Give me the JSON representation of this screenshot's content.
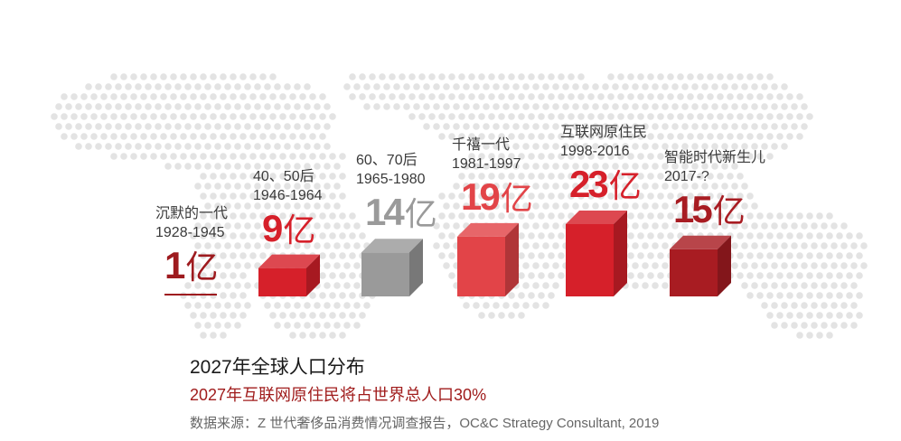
{
  "chart_data": {
    "type": "bar",
    "title": "2027年全球人口分布",
    "subtitle": "2027年互联网原住民将占世界总人口30%",
    "source": "数据来源：Z 世代奢侈品消费情况调查报告，OC&C Strategy Consultant, 2019",
    "unit": "亿",
    "categories": [
      {
        "name": "沉默的一代",
        "years": "1928-1945",
        "value": 1,
        "value_label": "1",
        "color": "#9e1b1f",
        "style": "line"
      },
      {
        "name": "40、50后",
        "years": "1946-1964",
        "value": 9,
        "value_label": "9",
        "color": "#d6202a",
        "style": "box"
      },
      {
        "name": "60、70后",
        "years": "1965-1980",
        "value": 14,
        "value_label": "14",
        "color": "#9a9a9a",
        "style": "box"
      },
      {
        "name": "千禧一代",
        "years": "1981-1997",
        "value": 19,
        "value_label": "19",
        "color": "#e24448",
        "style": "box"
      },
      {
        "name": "互联网原住民",
        "years": "1998-2016",
        "value": 23,
        "value_label": "23",
        "color": "#d6202a",
        "style": "box"
      },
      {
        "name": "智能时代新生儿",
        "years": "2017-?",
        "value": 15,
        "value_label": "15",
        "color": "#a81c22",
        "style": "box"
      }
    ]
  }
}
